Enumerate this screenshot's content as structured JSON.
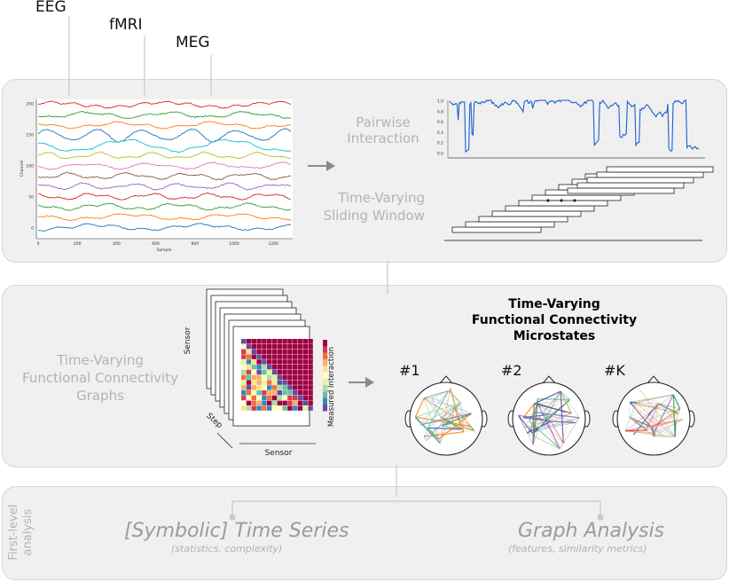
{
  "modalities": [
    "EEG",
    "fMRI",
    "MEG"
  ],
  "eeg_plot": {
    "ylabel": "Channel",
    "xlabel": "Sample",
    "yticks": [
      "200",
      "150",
      "100",
      "50",
      "0"
    ],
    "xticks": [
      "0",
      "200",
      "400",
      "600",
      "800",
      "1000",
      "1200"
    ],
    "trace_colors": [
      "#d62728",
      "#2ca02c",
      "#ff7f0e",
      "#1f77b4",
      "#17becf",
      "#bcbd22",
      "#e377c2",
      "#8c564b",
      "#9467bd",
      "#d62728",
      "#2ca02c",
      "#ff7f0e",
      "#1f77b4"
    ]
  },
  "panel1": {
    "pairwise_line1": "Pairwise",
    "pairwise_line2": "Interaction",
    "sliding_line1": "Time-Varying",
    "sliding_line2": "Sliding Window",
    "interaction_yticks": [
      "1.0",
      "0.8",
      "0.6",
      "0.4",
      "0.2",
      "0.0"
    ],
    "interaction_color": "#1f5fd0"
  },
  "panel2": {
    "graphs_line1": "Time-Varying",
    "graphs_line2": "Functional Connectivity",
    "graphs_line3": "Graphs",
    "axis_sensor_left": "Sensor",
    "axis_step": "Step",
    "axis_sensor_bottom": "Sensor",
    "colorbar_label": "Measured Interaction",
    "title_line1": "Time-Varying",
    "title_line2": "Functional Connectivity",
    "title_line3": "Microstates",
    "microstate_labels": [
      "#1",
      "#2",
      "#K"
    ]
  },
  "panel3": {
    "side_line1": "First-level",
    "side_line2": "analysis",
    "left_title": "[Symbolic] Time Series",
    "left_subtitle": "(statistics, complexity)",
    "right_title": "Graph Analysis",
    "right_subtitle": "(features, similarity metrics)"
  },
  "colors": {
    "panel_bg": "#f0f0f0",
    "label_gray": "#b3b3b3",
    "matrix_top": "#9e0142",
    "arrow": "#8a8a8a"
  }
}
